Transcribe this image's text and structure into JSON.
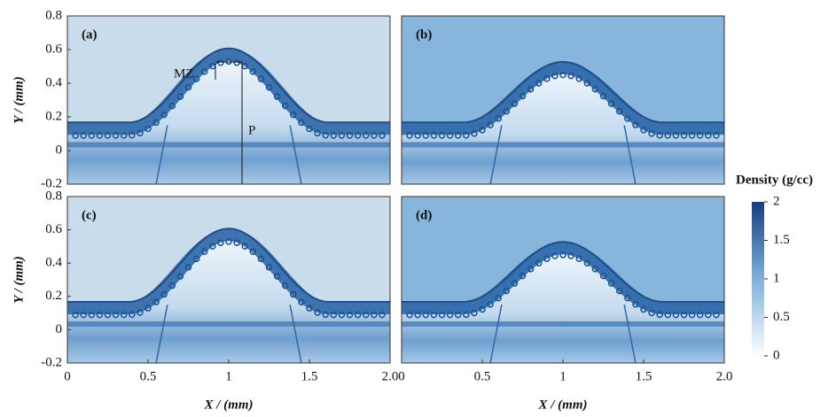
{
  "figure": {
    "panels": [
      {
        "label": "(a)"
      },
      {
        "label": "(b)"
      },
      {
        "label": "(c)"
      },
      {
        "label": "(d)"
      }
    ],
    "xlabel": "X / (mm)",
    "ylabel": "Y / (mm)",
    "xlim": [
      0,
      2
    ],
    "ylim": [
      -0.2,
      0.8
    ],
    "xticks": [
      0,
      0.5,
      1,
      1.5,
      {
        "value": 2,
        "label": "2.0"
      }
    ],
    "yticks": [
      -0.2,
      0,
      0.2,
      0.4,
      0.6,
      0.8
    ],
    "annotations": {
      "mz": "MZ",
      "p": "P"
    },
    "colorbar": {
      "title": "Density (g/cc)",
      "lim": [
        0,
        2
      ],
      "ticks": [
        0,
        0.5,
        1,
        1.5,
        2
      ]
    }
  }
}
